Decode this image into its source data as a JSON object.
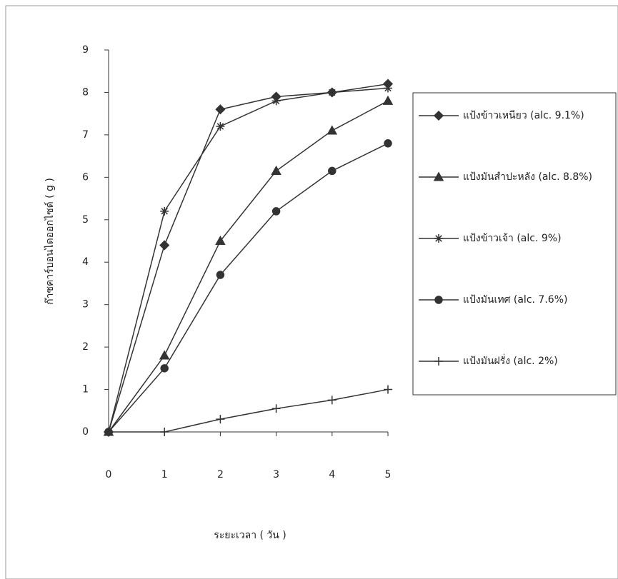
{
  "chart_data": {
    "type": "line",
    "x_label": "ระยะเวลา ( วัน )",
    "y_label": "ก๊าซคาร์บอนไดออกไซด์ ( g )",
    "x": [
      0,
      1,
      2,
      3,
      4,
      5
    ],
    "xlim": [
      0,
      5
    ],
    "xticks": [
      0,
      1,
      2,
      3,
      4,
      5
    ],
    "ylim": [
      0,
      9
    ],
    "yticks": [
      0,
      1,
      2,
      3,
      4,
      5,
      6,
      7,
      8,
      9
    ],
    "grid": false,
    "legend": "right",
    "series": [
      {
        "name": "แป้งข้าวเหนียว (alc. 9.1%)",
        "color": "#333333",
        "marker": "diamond",
        "values": [
          0,
          4.4,
          7.6,
          7.9,
          8.0,
          8.2
        ]
      },
      {
        "name": "แป้งมันสำปะหลัง (alc. 8.8%)",
        "color": "#333333",
        "marker": "triangle",
        "values": [
          0,
          1.8,
          4.5,
          6.15,
          7.1,
          7.8
        ]
      },
      {
        "name": "แป้งข้าวเจ้า (alc. 9%)",
        "color": "#333333",
        "marker": "star",
        "values": [
          0,
          5.2,
          7.2,
          7.8,
          8.0,
          8.1
        ]
      },
      {
        "name": "แป้งมันเทศ (alc. 7.6%)",
        "color": "#333333",
        "marker": "circle",
        "values": [
          0,
          1.5,
          3.7,
          5.2,
          6.15,
          6.8
        ]
      },
      {
        "name": "แป้งมันฝรั่ง (alc. 2%)",
        "color": "#333333",
        "marker": "plus",
        "values": [
          0,
          0,
          0.3,
          0.55,
          0.75,
          1.0
        ]
      }
    ]
  }
}
